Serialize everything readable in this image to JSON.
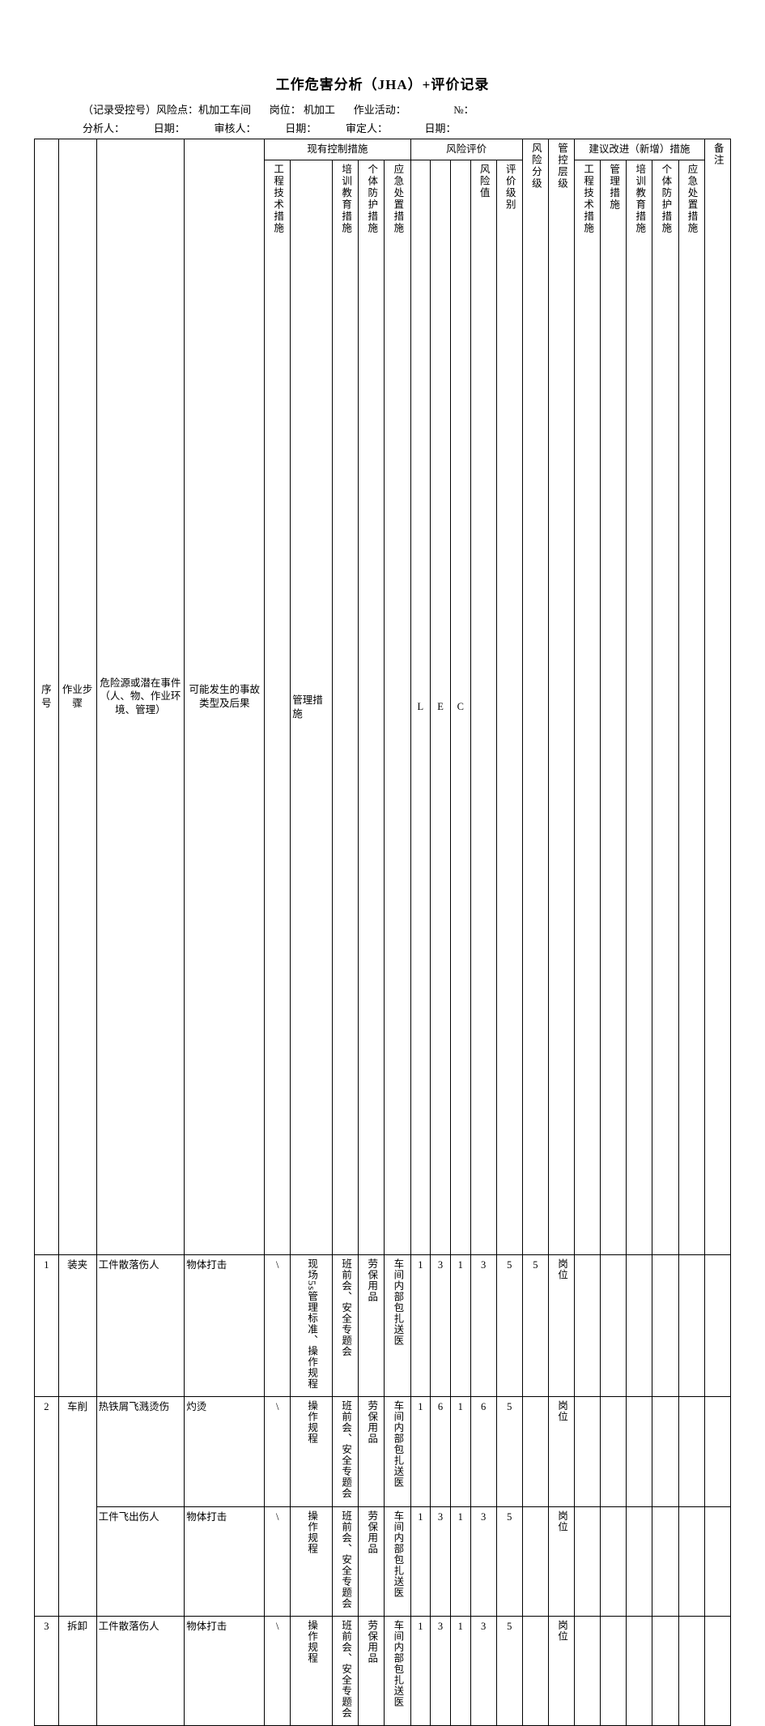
{
  "title": "工作危害分析（JHA）+评价记录",
  "meta1": "（记录受控号）风险点：机加工车间       岗位： 机加工       作业活动：                  №：",
  "meta2": "分析人：           日期：           审核人：           日期：           审定人：              日期：",
  "cols": {
    "w_seq": 24,
    "w_step": 38,
    "w_hazard": 88,
    "w_accident": 80,
    "w_eng": 26,
    "w_mgmt": 42,
    "w_train": 26,
    "w_ppe": 26,
    "w_emerg": 26,
    "w_L": 20,
    "w_E": 20,
    "w_C": 20,
    "w_D": 26,
    "w_eval": 26,
    "w_risklvl": 26,
    "w_ctrllvl": 26,
    "w_s1": 26,
    "w_s2": 26,
    "w_s3": 26,
    "w_s4": 26,
    "w_s5": 26,
    "w_remark": 26
  },
  "headers": {
    "seq": "序号",
    "step": "作业步骤",
    "hazard": "危险源或潜在事件（人、物、作业环境、管理）",
    "accident": "可能发生的事故类型及后果",
    "existing": "现有控制措施",
    "eng": "工程技术措施",
    "mgmt": "管理措施",
    "train": "培训教育措施",
    "ppe": "个体防护措施",
    "emerg": "应急处置措施",
    "riskeval": "风险评价",
    "L": "L",
    "E": "E",
    "C": "C",
    "D": "风险值",
    "eval": "评价级别",
    "risklvl": "风险分级",
    "ctrllvl": "管控层级",
    "suggest": "建议改进（新增）措施",
    "s_eng": "工程技术措施",
    "s_mgmt": "管理措施",
    "s_train": "培训教育措施",
    "s_ppe": "个体防护措施",
    "s_emerg": "应急处置措施",
    "remark": "备注"
  },
  "rows": [
    {
      "seq": "1",
      "step": "装夹",
      "hazard": "工件散落伤人",
      "accident": "物体打击",
      "eng": "\\",
      "mgmt": "现场5s管理标准、操作规程",
      "train": "班前会、安全专题会",
      "ppe": "劳保用品",
      "emerg": "车间内部包扎送医",
      "L": "1",
      "E": "3",
      "C": "1",
      "D": "3",
      "eval": "5",
      "risklvl": "5",
      "ctrllvl": "岗位",
      "rowspan_seq": 1,
      "rowspan_step": 1
    },
    {
      "seq": "2",
      "step": "车削",
      "hazard": "热铁屑飞溅烫伤",
      "accident": "灼烫",
      "eng": "\\",
      "mgmt": "操作规程",
      "train": "班前会、安全专题会",
      "ppe": "劳保用品",
      "emerg": "车间内部包扎送医",
      "L": "1",
      "E": "6",
      "C": "1",
      "D": "6",
      "eval": "5",
      "risklvl": "",
      "ctrllvl": "岗位",
      "rowspan_seq": 2,
      "rowspan_step": 2
    },
    {
      "seq": "",
      "step": "",
      "hazard": "工件飞出伤人",
      "accident": "物体打击",
      "eng": "\\",
      "mgmt": "操作规程",
      "train": "班前会、安全专题会",
      "ppe": "劳保用品",
      "emerg": "车间内部包扎送医",
      "L": "1",
      "E": "3",
      "C": "1",
      "D": "3",
      "eval": "5",
      "risklvl": "",
      "ctrllvl": "岗位",
      "rowspan_seq": 0,
      "rowspan_step": 0
    },
    {
      "seq": "3",
      "step": "拆卸",
      "hazard": "工件散落伤人",
      "accident": "物体打击",
      "eng": "\\",
      "mgmt": "操作规程",
      "train": "班前会、安全专题会",
      "ppe": "劳保用品",
      "emerg": "车间内部包扎送医",
      "L": "1",
      "E": "3",
      "C": "1",
      "D": "3",
      "eval": "5",
      "risklvl": "",
      "ctrllvl": "岗位",
      "rowspan_seq": 1,
      "rowspan_step": 1
    }
  ]
}
